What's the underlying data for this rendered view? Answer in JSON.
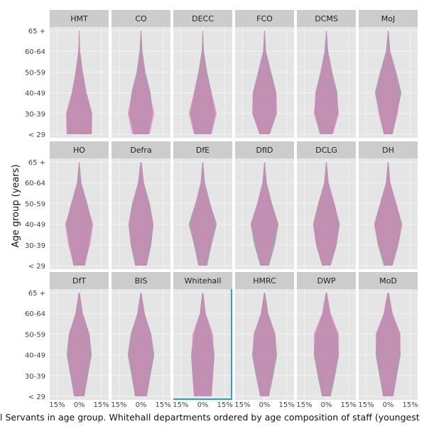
{
  "chart_data": {
    "type": "area",
    "ylabel": "Age group (years)",
    "caption": "l Servants in age group. Whitehall departments ordered by age composition of staff (youngest",
    "age_groups": [
      "< 29",
      "30-39",
      "40-49",
      "50-59",
      "60-64",
      "65 +"
    ],
    "x_tick_labels": [
      "15%",
      "0%",
      "15%"
    ],
    "xlim": [
      -20,
      20
    ],
    "colors": {
      "panel": "#e5e5e5",
      "strip": "#cccccc",
      "series_a": "#7f9a9a",
      "series_b": "#d77fb3",
      "overlap": "#a87a9a",
      "highlight": "#2b9fd8"
    },
    "highlight_panel": "Whitehall",
    "panels": [
      {
        "name": "HMT",
        "a": [
          17,
          17,
          10,
          5,
          1.2,
          0.4
        ],
        "b": [
          17,
          18,
          10,
          5,
          1.2,
          0.4
        ]
      },
      {
        "name": "CO",
        "a": [
          10,
          16,
          13,
          6,
          2.0,
          0.5
        ],
        "b": [
          12,
          18,
          12,
          5,
          1.5,
          0.4
        ]
      },
      {
        "name": "DECC",
        "a": [
          11,
          17,
          12,
          6,
          1.5,
          0.4
        ],
        "b": [
          12,
          19,
          12,
          5,
          1.2,
          0.3
        ]
      },
      {
        "name": "FCO",
        "a": [
          7,
          16,
          16,
          9,
          2.0,
          0.5
        ],
        "b": [
          7,
          17,
          16,
          8,
          1.8,
          0.4
        ]
      },
      {
        "name": "DCMS",
        "a": [
          8,
          16,
          15,
          8,
          2.5,
          0.5
        ],
        "b": [
          9,
          17,
          14,
          8,
          2.0,
          0.4
        ]
      },
      {
        "name": "MoJ",
        "a": [
          6,
          12,
          18,
          11,
          3.0,
          0.5
        ],
        "b": [
          6,
          13,
          17,
          10,
          2.5,
          0.4
        ]
      },
      {
        "name": "HO",
        "a": [
          8,
          13,
          18,
          11,
          3.0,
          0.5
        ],
        "b": [
          7,
          15,
          19,
          10,
          2.5,
          0.4
        ]
      },
      {
        "name": "Defra",
        "a": [
          8,
          14,
          17,
          12,
          4.0,
          0.8
        ],
        "b": [
          7,
          13,
          17,
          11,
          4.0,
          0.6
        ]
      },
      {
        "name": "DfE",
        "a": [
          6,
          12,
          19,
          10,
          3.0,
          0.6
        ],
        "b": [
          5,
          11,
          18,
          10,
          2.5,
          0.5
        ]
      },
      {
        "name": "DfID",
        "a": [
          6,
          14,
          19,
          10,
          3.0,
          0.5
        ],
        "b": [
          5,
          12,
          18,
          10,
          2.5,
          0.5
        ]
      },
      {
        "name": "DCLG",
        "a": [
          6,
          14,
          18,
          11,
          3.0,
          0.5
        ],
        "b": [
          5,
          14,
          18,
          11,
          3.0,
          0.5
        ]
      },
      {
        "name": "DH",
        "a": [
          6,
          14,
          19,
          11,
          3.0,
          0.5
        ],
        "b": [
          5,
          13,
          19,
          11,
          3.0,
          0.5
        ]
      },
      {
        "name": "DfT",
        "a": [
          7,
          12,
          17,
          14,
          5.0,
          0.8
        ],
        "b": [
          7,
          11,
          16,
          14,
          5.0,
          0.7
        ]
      },
      {
        "name": "BIS",
        "a": [
          8,
          13,
          18,
          14,
          5.0,
          0.8
        ],
        "b": [
          8,
          12,
          17,
          13,
          5.0,
          0.7
        ]
      },
      {
        "name": "Whitehall",
        "a": [
          12,
          14,
          16,
          12,
          4.0,
          0.7
        ],
        "b": [
          12,
          14,
          15,
          14,
          4.0,
          0.7
        ]
      },
      {
        "name": "HMRC",
        "a": [
          6,
          12,
          17,
          14,
          5.0,
          0.8
        ],
        "b": [
          6,
          11,
          16,
          15,
          5.0,
          0.8
        ]
      },
      {
        "name": "DWP",
        "a": [
          6,
          12,
          17,
          15,
          5.0,
          0.8
        ],
        "b": [
          5,
          11,
          17,
          17,
          6.0,
          0.8
        ]
      },
      {
        "name": "MoD",
        "a": [
          7,
          12,
          17,
          16,
          6.0,
          1.0
        ],
        "b": [
          7,
          11,
          16,
          17,
          6.0,
          0.9
        ]
      }
    ]
  }
}
